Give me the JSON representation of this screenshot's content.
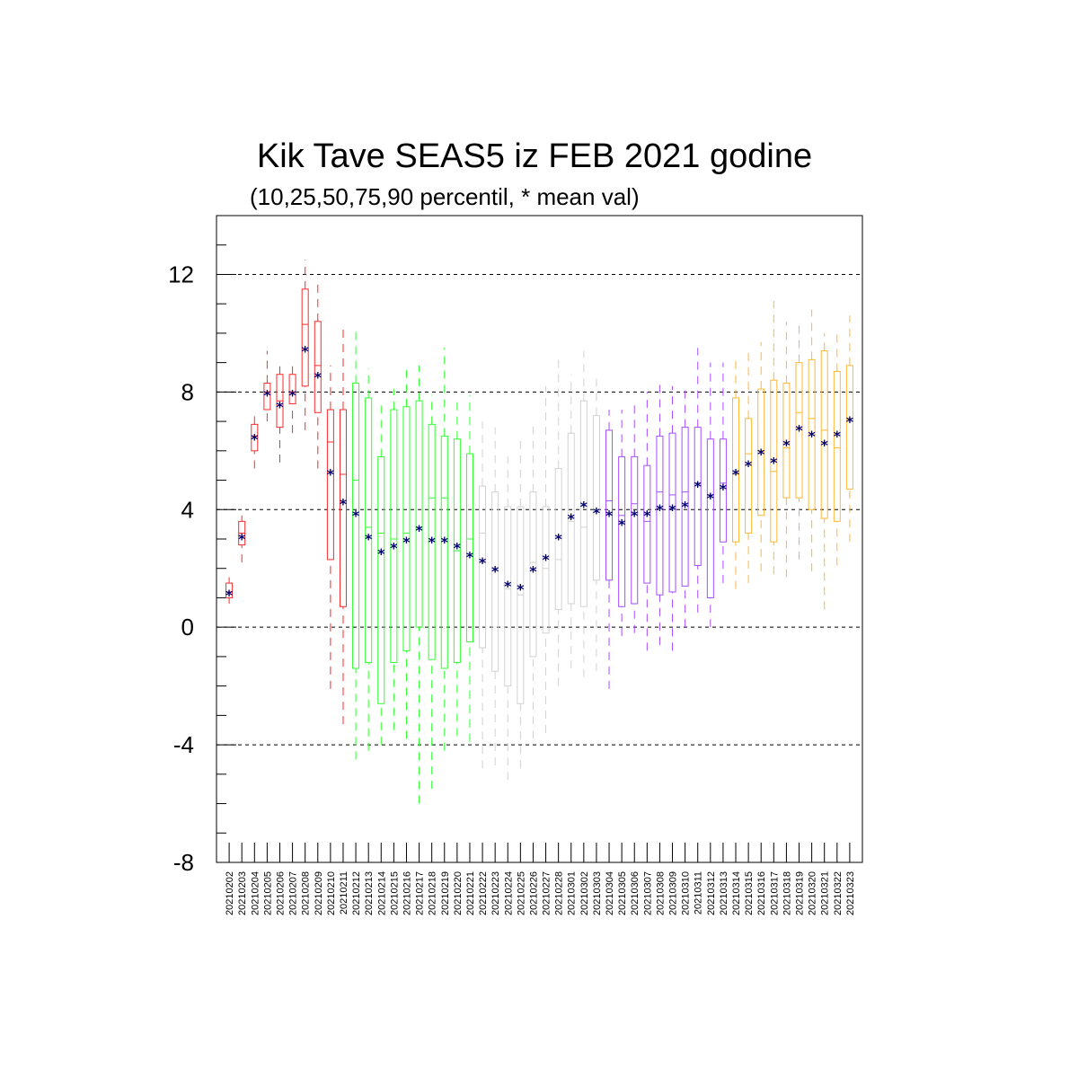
{
  "chart_data": {
    "type": "box",
    "title": "Kik Tave SEAS5 iz FEB 2021 godine",
    "subtitle": "(10,25,50,75,90 percentil, * mean val)",
    "ylim": [
      -8,
      14
    ],
    "yticks": [
      {
        "value": -8,
        "label": "-8"
      },
      {
        "value": -4,
        "label": "-4"
      },
      {
        "value": 0,
        "label": "0"
      },
      {
        "value": 4,
        "label": "4"
      },
      {
        "value": 8,
        "label": "8"
      },
      {
        "value": 12,
        "label": "12"
      }
    ],
    "grid_lines": [
      -4,
      0,
      4,
      8,
      12
    ],
    "colors": {
      "red": "#ff2a2a",
      "green": "#2eff2e",
      "gray": "#d2d2d2",
      "purple": "#a64dff",
      "orange": "#ffb733",
      "mean": "#00006e",
      "grid": "#000000"
    },
    "mean_symbol": "*",
    "boxes": [
      {
        "date": "20210202",
        "color": "red",
        "p10": 0.8,
        "p25": 1.0,
        "p50": 1.2,
        "p75": 1.5,
        "p90": 1.7,
        "mean": 1.2
      },
      {
        "date": "20210203",
        "color": "red",
        "p10": 2.2,
        "p25": 2.8,
        "p50": 3.2,
        "p75": 3.6,
        "p90": 3.8,
        "mean": 3.1
      },
      {
        "date": "20210204",
        "color": "red",
        "p10": 5.4,
        "p25": 6.0,
        "p50": 6.5,
        "p75": 6.9,
        "p90": 7.3,
        "mean": 6.5
      },
      {
        "date": "20210205",
        "color": "red",
        "p10": 7.0,
        "p25": 7.4,
        "p50": 8.0,
        "p75": 8.3,
        "p90": 9.4,
        "mean": 8.0
      },
      {
        "date": "20210206",
        "color": "red",
        "p10": 5.6,
        "p25": 6.8,
        "p50": 7.7,
        "p75": 8.6,
        "p90": 9.0,
        "mean": 7.6
      },
      {
        "date": "20210207",
        "color": "red",
        "p10": 6.6,
        "p25": 7.6,
        "p50": 8.0,
        "p75": 8.6,
        "p90": 9.0,
        "mean": 8.0
      },
      {
        "date": "20210208",
        "color": "red",
        "p10": 6.7,
        "p25": 8.2,
        "p50": 10.3,
        "p75": 11.5,
        "p90": 12.5,
        "mean": 9.5
      },
      {
        "date": "20210209",
        "color": "red",
        "p10": 5.4,
        "p25": 7.3,
        "p50": 8.9,
        "p75": 10.4,
        "p90": 11.7,
        "mean": 8.6
      },
      {
        "date": "20210210",
        "color": "red",
        "p10": -2.1,
        "p25": 2.3,
        "p50": 6.3,
        "p75": 7.4,
        "p90": 8.9,
        "mean": 5.3
      },
      {
        "date": "20210211",
        "color": "red",
        "p10": -3.3,
        "p25": 0.7,
        "p50": 5.2,
        "p75": 7.4,
        "p90": 10.2,
        "mean": 4.3
      },
      {
        "date": "20210212",
        "color": "green",
        "p10": -4.5,
        "p25": -1.4,
        "p50": 5.0,
        "p75": 8.3,
        "p90": 10.2,
        "mean": 3.9
      },
      {
        "date": "20210213",
        "color": "green",
        "p10": -4.2,
        "p25": -1.2,
        "p50": 3.4,
        "p75": 7.8,
        "p90": 8.8,
        "mean": 3.1
      },
      {
        "date": "20210214",
        "color": "green",
        "p10": -4.0,
        "p25": -2.6,
        "p50": 3.2,
        "p75": 5.8,
        "p90": 7.7,
        "mean": 2.6
      },
      {
        "date": "20210215",
        "color": "green",
        "p10": -3.5,
        "p25": -1.2,
        "p50": 3.0,
        "p75": 7.4,
        "p90": 8.1,
        "mean": 2.8
      },
      {
        "date": "20210216",
        "color": "green",
        "p10": -3.8,
        "p25": -0.8,
        "p50": 3.2,
        "p75": 7.5,
        "p90": 8.9,
        "mean": 3.0
      },
      {
        "date": "20210217",
        "color": "green",
        "p10": -6.0,
        "p25": 0.0,
        "p50": 3.4,
        "p75": 7.7,
        "p90": 8.9,
        "mean": 3.4
      },
      {
        "date": "20210218",
        "color": "green",
        "p10": -5.5,
        "p25": -1.1,
        "p50": 4.4,
        "p75": 6.9,
        "p90": 7.9,
        "mean": 3.0
      },
      {
        "date": "20210219",
        "color": "green",
        "p10": -4.2,
        "p25": -1.4,
        "p50": 4.4,
        "p75": 6.5,
        "p90": 9.5,
        "mean": 3.0
      },
      {
        "date": "20210220",
        "color": "green",
        "p10": -3.7,
        "p25": -1.2,
        "p50": 2.6,
        "p75": 6.4,
        "p90": 7.8,
        "mean": 2.8
      },
      {
        "date": "20210221",
        "color": "green",
        "p10": -3.9,
        "p25": -0.5,
        "p50": 3.0,
        "p75": 5.9,
        "p90": 7.9,
        "mean": 2.5
      },
      {
        "date": "20210222",
        "color": "gray",
        "p10": -4.8,
        "p25": -0.7,
        "p50": 3.2,
        "p75": 4.8,
        "p90": 7.0,
        "mean": 2.3
      },
      {
        "date": "20210223",
        "color": "gray",
        "p10": -4.7,
        "p25": -1.5,
        "p50": 2.0,
        "p75": 4.6,
        "p90": 6.8,
        "mean": 2.0
      },
      {
        "date": "20210224",
        "color": "gray",
        "p10": -5.2,
        "p25": -2.0,
        "p50": 1.3,
        "p75": 4.1,
        "p90": 5.8,
        "mean": 1.5
      },
      {
        "date": "20210225",
        "color": "gray",
        "p10": -4.8,
        "p25": -2.6,
        "p50": 1.1,
        "p75": 4.1,
        "p90": 6.4,
        "mean": 1.4
      },
      {
        "date": "20210226",
        "color": "gray",
        "p10": -3.8,
        "p25": -1.0,
        "p50": 2.2,
        "p75": 4.6,
        "p90": 7.0,
        "mean": 2.0
      },
      {
        "date": "20210227",
        "color": "gray",
        "p10": -3.6,
        "p25": -0.2,
        "p50": 2.0,
        "p75": 4.1,
        "p90": 8.2,
        "mean": 2.4
      },
      {
        "date": "20210228",
        "color": "gray",
        "p10": -2.0,
        "p25": 0.6,
        "p50": 2.3,
        "p75": 5.4,
        "p90": 9.1,
        "mean": 3.1
      },
      {
        "date": "20210301",
        "color": "gray",
        "p10": -1.4,
        "p25": 0.8,
        "p50": 3.6,
        "p75": 6.6,
        "p90": 8.6,
        "mean": 3.8
      },
      {
        "date": "20210302",
        "color": "gray",
        "p10": -1.7,
        "p25": 0.7,
        "p50": 3.4,
        "p75": 7.7,
        "p90": 9.4,
        "mean": 4.2
      },
      {
        "date": "20210303",
        "color": "gray",
        "p10": -1.5,
        "p25": 1.6,
        "p50": 4.0,
        "p75": 7.2,
        "p90": 8.5,
        "mean": 4.0
      },
      {
        "date": "20210304",
        "color": "purple",
        "p10": -2.1,
        "p25": 1.6,
        "p50": 4.3,
        "p75": 6.7,
        "p90": 7.4,
        "mean": 3.9
      },
      {
        "date": "20210305",
        "color": "purple",
        "p10": -0.3,
        "p25": 0.7,
        "p50": 3.8,
        "p75": 5.8,
        "p90": 7.4,
        "mean": 3.6
      },
      {
        "date": "20210306",
        "color": "purple",
        "p10": -0.2,
        "p25": 0.8,
        "p50": 4.2,
        "p75": 5.8,
        "p90": 7.6,
        "mean": 3.9
      },
      {
        "date": "20210307",
        "color": "purple",
        "p10": -0.8,
        "p25": 1.5,
        "p50": 3.6,
        "p75": 5.5,
        "p90": 8.0,
        "mean": 3.9
      },
      {
        "date": "20210308",
        "color": "purple",
        "p10": -0.6,
        "p25": 1.1,
        "p50": 4.6,
        "p75": 6.5,
        "p90": 8.3,
        "mean": 4.1
      },
      {
        "date": "20210309",
        "color": "purple",
        "p10": -0.8,
        "p25": 1.2,
        "p50": 4.5,
        "p75": 6.6,
        "p90": 8.2,
        "mean": 4.1
      },
      {
        "date": "20210310",
        "color": "purple",
        "p10": 0.0,
        "p25": 1.4,
        "p50": 4.6,
        "p75": 6.8,
        "p90": 8.1,
        "mean": 4.2
      },
      {
        "date": "20210311",
        "color": "purple",
        "p10": 0.5,
        "p25": 2.1,
        "p50": 4.9,
        "p75": 6.8,
        "p90": 9.5,
        "mean": 4.9
      },
      {
        "date": "20210312",
        "color": "purple",
        "p10": 0.0,
        "p25": 1.0,
        "p50": 4.5,
        "p75": 6.4,
        "p90": 9.0,
        "mean": 4.5
      },
      {
        "date": "20210313",
        "color": "purple",
        "p10": 1.5,
        "p25": 2.9,
        "p50": 4.9,
        "p75": 6.4,
        "p90": 9.0,
        "mean": 4.8
      },
      {
        "date": "20210314",
        "color": "orange",
        "p10": 1.3,
        "p25": 2.9,
        "p50": 5.2,
        "p75": 7.8,
        "p90": 9.2,
        "mean": 5.3
      },
      {
        "date": "20210315",
        "color": "orange",
        "p10": 1.5,
        "p25": 3.2,
        "p50": 5.9,
        "p75": 7.1,
        "p90": 9.4,
        "mean": 5.6
      },
      {
        "date": "20210316",
        "color": "orange",
        "p10": 1.9,
        "p25": 3.8,
        "p50": 6.0,
        "p75": 8.1,
        "p90": 9.7,
        "mean": 6.0
      },
      {
        "date": "20210317",
        "color": "orange",
        "p10": 1.8,
        "p25": 2.9,
        "p50": 5.3,
        "p75": 8.4,
        "p90": 11.1,
        "mean": 5.7
      },
      {
        "date": "20210318",
        "color": "orange",
        "p10": 1.7,
        "p25": 4.4,
        "p50": 6.1,
        "p75": 8.3,
        "p90": 10.4,
        "mean": 6.3
      },
      {
        "date": "20210319",
        "color": "orange",
        "p10": 2.3,
        "p25": 4.4,
        "p50": 7.3,
        "p75": 9.0,
        "p90": 10.3,
        "mean": 6.8
      },
      {
        "date": "20210320",
        "color": "orange",
        "p10": 1.9,
        "p25": 4.0,
        "p50": 7.1,
        "p75": 9.1,
        "p90": 10.8,
        "mean": 6.6
      },
      {
        "date": "20210321",
        "color": "orange",
        "p10": 0.6,
        "p25": 3.7,
        "p50": 6.7,
        "p75": 9.4,
        "p90": 10.0,
        "mean": 6.3
      },
      {
        "date": "20210322",
        "color": "orange",
        "p10": 2.1,
        "p25": 3.6,
        "p50": 6.1,
        "p75": 8.7,
        "p90": 10.1,
        "mean": 6.6
      },
      {
        "date": "20210323",
        "color": "orange",
        "p10": 2.9,
        "p25": 4.7,
        "p50": 7.1,
        "p75": 8.9,
        "p90": 10.6,
        "mean": 7.1
      }
    ]
  }
}
